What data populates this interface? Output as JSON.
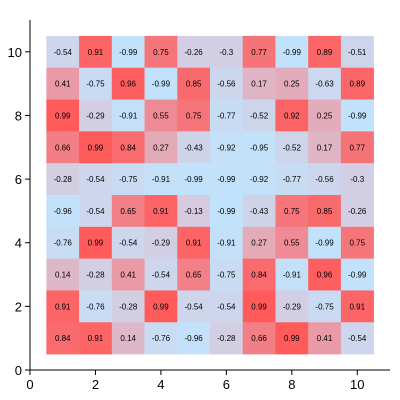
{
  "chart_data": {
    "type": "heatmap",
    "title": "",
    "xlabel": "",
    "ylabel": "",
    "xlim": [
      0,
      11
    ],
    "ylim": [
      0,
      11
    ],
    "x_ticks": [
      "0",
      "2",
      "4",
      "6",
      "8",
      "10"
    ],
    "y_ticks": [
      "0",
      "2",
      "4",
      "6",
      "8",
      "10"
    ],
    "grid": false,
    "legend": "none",
    "colors": {
      "low": "#c2e2fb",
      "mid": "#d9c7da",
      "high": "#ff5a5a"
    },
    "value_range": [
      -1,
      1
    ],
    "x": [
      1,
      2,
      3,
      4,
      5,
      6,
      7,
      8,
      9,
      10
    ],
    "y": [
      10,
      9,
      8,
      7,
      6,
      5,
      4,
      3,
      2,
      1
    ],
    "labels": [
      [
        "-0.54",
        "0.91",
        "-0.99",
        "0.75",
        "-0.26",
        "-0.3",
        "0.77",
        "-0.99",
        "0.89",
        "-0.51"
      ],
      [
        "0.41",
        "-0.75",
        "0.96",
        "-0.99",
        "0.85",
        "-0.56",
        "0.17",
        "0.25",
        "-0.63",
        "0.89"
      ],
      [
        "0.99",
        "-0.29",
        "-0.91",
        "0.55",
        "0.75",
        "-0.77",
        "-0.52",
        "0.92",
        "0.25",
        "-0.99"
      ],
      [
        "0.66",
        "0.99",
        "0.84",
        "0.27",
        "-0.43",
        "-0.92",
        "-0.95",
        "-0.52",
        "0.17",
        "0.77"
      ],
      [
        "-0.28",
        "-0.54",
        "-0.75",
        "-0.91",
        "-0.99",
        "-0.99",
        "-0.92",
        "-0.77",
        "-0.56",
        "-0.3"
      ],
      [
        "-0.96",
        "-0.54",
        "0.65",
        "0.91",
        "-0.13",
        "-0.99",
        "-0.43",
        "0.75",
        "0.85",
        "-0.26"
      ],
      [
        "-0.76",
        "0.99",
        "-0.54",
        "-0.29",
        "0.91",
        "-0.91",
        "0.27",
        "0.55",
        "-0.99",
        "0.75"
      ],
      [
        "0.14",
        "-0.28",
        "0.41",
        "-0.54",
        "0.65",
        "-0.75",
        "0.84",
        "-0.91",
        "0.96",
        "-0.99"
      ],
      [
        "0.91",
        "-0.76",
        "-0.28",
        "0.99",
        "-0.54",
        "-0.54",
        "0.99",
        "-0.29",
        "-0.75",
        "0.91"
      ],
      [
        "0.84",
        "0.91",
        "0.14",
        "-0.76",
        "-0.96",
        "-0.28",
        "0.66",
        "0.99",
        "0.41",
        "-0.54"
      ]
    ]
  }
}
